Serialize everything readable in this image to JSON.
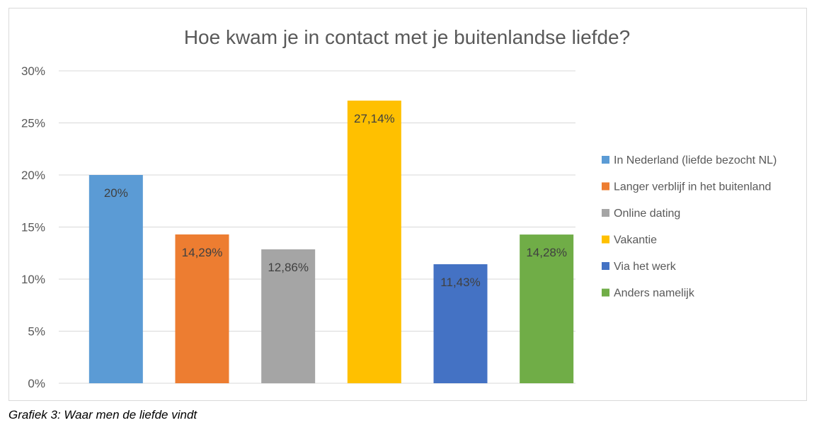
{
  "chart_data": {
    "type": "bar",
    "title": "Hoe kwam je in contact met je buitenlandse liefde?",
    "xlabel": "",
    "ylabel": "",
    "ylim": [
      0,
      30
    ],
    "yticks": [
      "0%",
      "5%",
      "10%",
      "15%",
      "20%",
      "25%",
      "30%"
    ],
    "ytick_values": [
      0,
      5,
      10,
      15,
      20,
      25,
      30
    ],
    "grid": true,
    "legend_position": "right",
    "categories": [
      "In Nederland (liefde bezocht NL)",
      "Langer verblijf in het buitenland",
      "Online dating",
      "Vakantie",
      "Via het werk",
      "Anders namelijk"
    ],
    "values": [
      20,
      14.29,
      12.86,
      27.14,
      11.43,
      14.28
    ],
    "data_labels": [
      "20%",
      "14,29%",
      "12,86%",
      "27,14%",
      "11,43%",
      "14,28%"
    ],
    "colors": [
      "#5b9bd5",
      "#ed7d31",
      "#a5a5a5",
      "#ffc000",
      "#4472c4",
      "#70ad47"
    ]
  },
  "caption": "Grafiek 3: Waar men de liefde vindt"
}
